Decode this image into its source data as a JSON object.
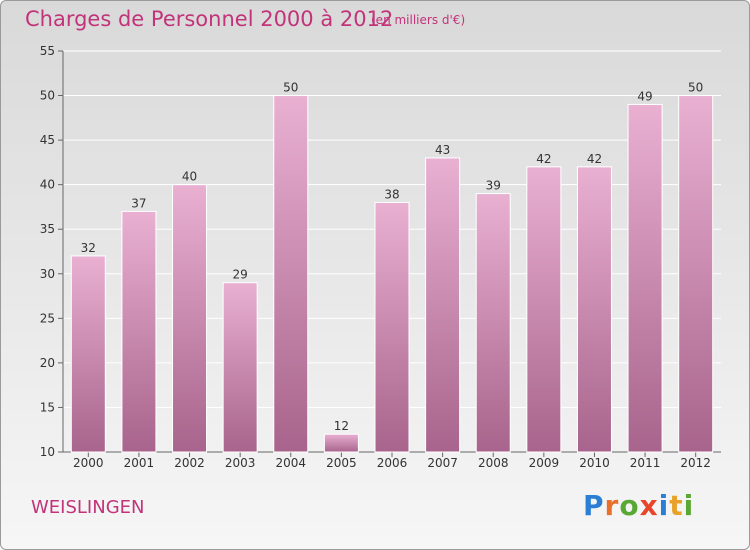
{
  "title": "Charges de Personnel 2000 à 2012",
  "subtitle": "(en milliers d'€)",
  "commune": "WEISLINGEN",
  "logo": {
    "letters": [
      "P",
      "r",
      "o",
      "x",
      "i",
      "t",
      "i"
    ],
    "colors": [
      "#2a7fd4",
      "#e8702a",
      "#5aa834",
      "#e8462a",
      "#2a7fd4",
      "#e8a22a",
      "#5aa834"
    ]
  },
  "colors": {
    "accent": "#c2337a",
    "bar_top": "#e9b0d2",
    "bar_bottom": "#a8648c"
  },
  "chart_data": {
    "type": "bar",
    "categories": [
      "2000",
      "2001",
      "2002",
      "2003",
      "2004",
      "2005",
      "2006",
      "2007",
      "2008",
      "2009",
      "2010",
      "2011",
      "2012"
    ],
    "values": [
      32,
      37,
      40,
      29,
      50,
      12,
      38,
      43,
      39,
      42,
      42,
      49,
      50
    ],
    "ylim": [
      10,
      55
    ],
    "yticks": [
      10,
      15,
      20,
      25,
      30,
      35,
      40,
      45,
      50,
      55
    ],
    "grid": true,
    "title": "Charges de Personnel 2000 à 2012",
    "xlabel": "",
    "ylabel": ""
  }
}
